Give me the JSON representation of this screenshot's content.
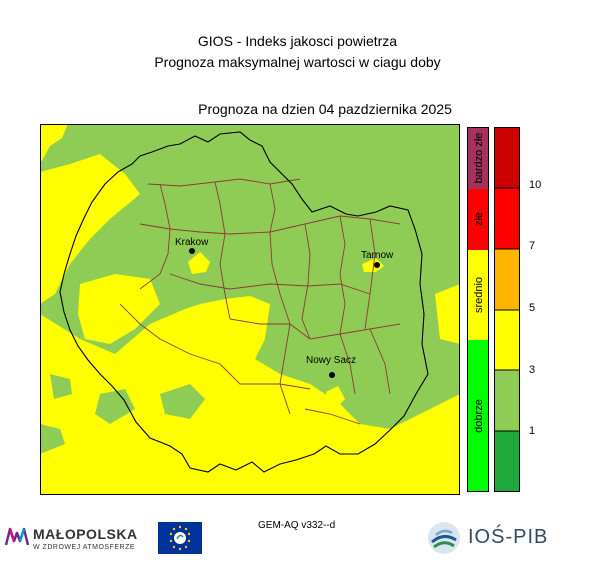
{
  "header": {
    "title_line1": "GIOS - Indeks jakosci powietrza",
    "title_line2": "Prognoza maksymalnej wartosci w ciagu doby",
    "forecast_date": "Prognoza na dzien  04 pazdziernika 2025"
  },
  "cities": [
    {
      "name": "Krakow"
    },
    {
      "name": "Tarnow"
    },
    {
      "name": "Nowy Sacz"
    }
  ],
  "legend": {
    "categories": [
      {
        "label": "bardzo złe",
        "color": "#a3325c"
      },
      {
        "label": "złe",
        "color": "#ff0000"
      },
      {
        "label": "srednio",
        "color": "#ffff00"
      },
      {
        "label": "dobrze",
        "color": "#00ff00"
      }
    ],
    "scale_colors": [
      "#cc0000",
      "#ff0000",
      "#ffb400",
      "#ffff00",
      "#8fcc55",
      "#1fa83c"
    ],
    "scale_ticks": [
      "10",
      "7",
      "5",
      "3",
      "1"
    ]
  },
  "map_colors": {
    "yellow": "#ffff00",
    "light_green": "#8fcc55",
    "dark_green": "#1fa83c",
    "powiat_border": "#8b3a3a",
    "region_border": "#000000"
  },
  "footer": {
    "model": "GEM-AQ v332--d",
    "malopolska_name": "MAŁOPOLSKA",
    "malopolska_slogan": "W ZDROWEJ ATMOSFERZE",
    "ios_name": "IOŚ-PIB"
  }
}
